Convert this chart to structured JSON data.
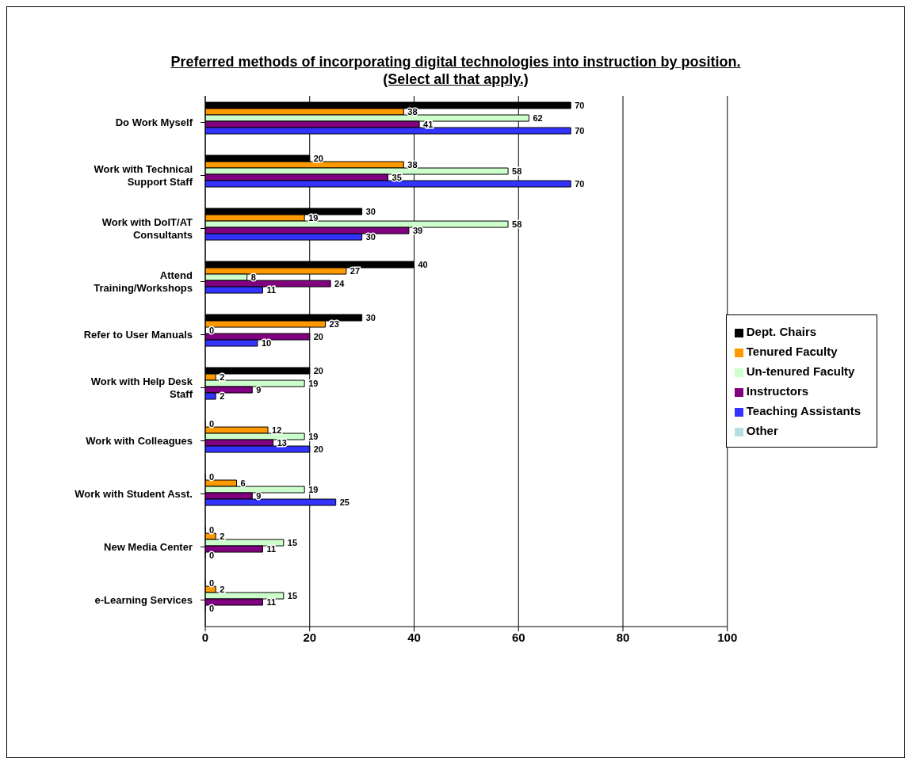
{
  "chart_data": {
    "type": "bar",
    "orientation": "horizontal",
    "title": "Preferred methods of incorporating digital technologies into instruction by position.\n(Select all that apply.)",
    "categories": [
      "Do Work Myself",
      "Work with Technical Support Staff",
      "Work with DoIT/AT Consultants",
      "Attend Training/Workshops",
      "Refer to User Manuals",
      "Work with Help Desk Staff",
      "Work with Colleagues",
      "Work with Student Asst.",
      "New Media Center",
      "e-Learning Services"
    ],
    "series": [
      {
        "name": "Dept. Chairs",
        "color": "#000000",
        "values": [
          70,
          20,
          30,
          40,
          30,
          20,
          0,
          0,
          0,
          0
        ]
      },
      {
        "name": "Tenured Faculty",
        "color": "#ff9900",
        "values": [
          38,
          38,
          19,
          27,
          23,
          2,
          12,
          6,
          2,
          2
        ]
      },
      {
        "name": "Un-tenured Faculty",
        "color": "#ccffcc",
        "values": [
          62,
          58,
          58,
          8,
          0,
          19,
          19,
          19,
          15,
          15
        ]
      },
      {
        "name": "Instructors",
        "color": "#800080",
        "values": [
          41,
          35,
          39,
          24,
          20,
          9,
          13,
          9,
          11,
          11
        ]
      },
      {
        "name": "Teaching Assistants",
        "color": "#3333ff",
        "values": [
          70,
          70,
          30,
          11,
          10,
          2,
          20,
          25,
          0,
          0
        ]
      },
      {
        "name": "Other",
        "color": "#b3dfe0",
        "values": [
          null,
          null,
          null,
          null,
          null,
          null,
          null,
          null,
          null,
          null
        ]
      }
    ],
    "xlim": [
      0,
      100
    ],
    "xticks": [
      0,
      20,
      40,
      60,
      80,
      100
    ],
    "grid": "x",
    "legend": "right",
    "data_labels": true
  }
}
